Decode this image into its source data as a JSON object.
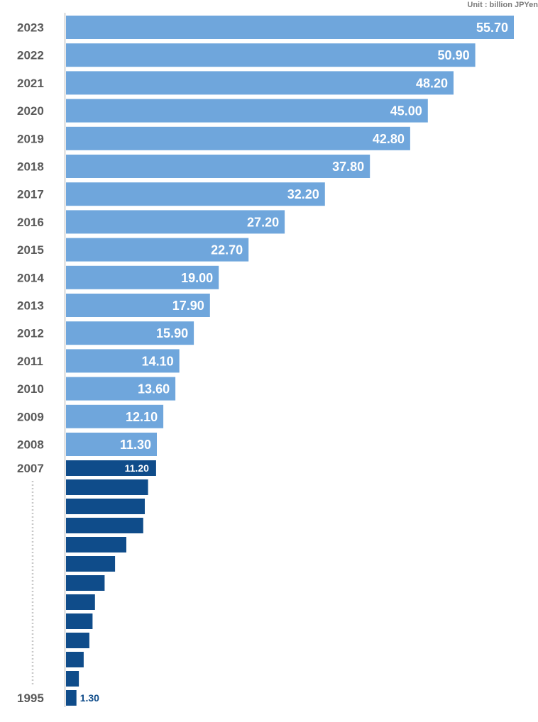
{
  "chart_data": {
    "type": "bar",
    "orientation": "horizontal",
    "unit_label": "Unit : billion JPYen",
    "colors": {
      "recent": "#6fa6dc",
      "early": "#0f4c8a",
      "axis": "#c8c8c8",
      "year_text": "#5a5a5a"
    },
    "bars": [
      {
        "year": "2023",
        "value": 55.7,
        "label": "55.70"
      },
      {
        "year": "2022",
        "value": 50.9,
        "label": "50.90"
      },
      {
        "year": "2021",
        "value": 48.2,
        "label": "48.20"
      },
      {
        "year": "2020",
        "value": 45.0,
        "label": "45.00"
      },
      {
        "year": "2019",
        "value": 42.8,
        "label": "42.80"
      },
      {
        "year": "2018",
        "value": 37.8,
        "label": "37.80"
      },
      {
        "year": "2017",
        "value": 32.2,
        "label": "32.20"
      },
      {
        "year": "2016",
        "value": 27.2,
        "label": "27.20"
      },
      {
        "year": "2015",
        "value": 22.7,
        "label": "22.70"
      },
      {
        "year": "2014",
        "value": 19.0,
        "label": "19.00"
      },
      {
        "year": "2013",
        "value": 17.9,
        "label": "17.90"
      },
      {
        "year": "2012",
        "value": 15.9,
        "label": "15.90"
      },
      {
        "year": "2011",
        "value": 14.1,
        "label": "14.10"
      },
      {
        "year": "2010",
        "value": 13.6,
        "label": "13.60"
      },
      {
        "year": "2009",
        "value": 12.1,
        "label": "12.10"
      },
      {
        "year": "2008",
        "value": 11.3,
        "label": "11.30"
      },
      {
        "year": "2007",
        "value": 11.2,
        "label": "11.20"
      },
      {
        "year": "",
        "value": 10.2,
        "label": ""
      },
      {
        "year": "",
        "value": 9.8,
        "label": ""
      },
      {
        "year": "",
        "value": 9.6,
        "label": ""
      },
      {
        "year": "",
        "value": 7.5,
        "label": ""
      },
      {
        "year": "",
        "value": 6.1,
        "label": ""
      },
      {
        "year": "",
        "value": 4.8,
        "label": ""
      },
      {
        "year": "",
        "value": 3.6,
        "label": ""
      },
      {
        "year": "",
        "value": 3.3,
        "label": ""
      },
      {
        "year": "",
        "value": 2.9,
        "label": ""
      },
      {
        "year": "",
        "value": 2.2,
        "label": ""
      },
      {
        "year": "",
        "value": 1.6,
        "label": ""
      },
      {
        "year": "1995",
        "value": 1.3,
        "label": "1.30"
      }
    ]
  }
}
